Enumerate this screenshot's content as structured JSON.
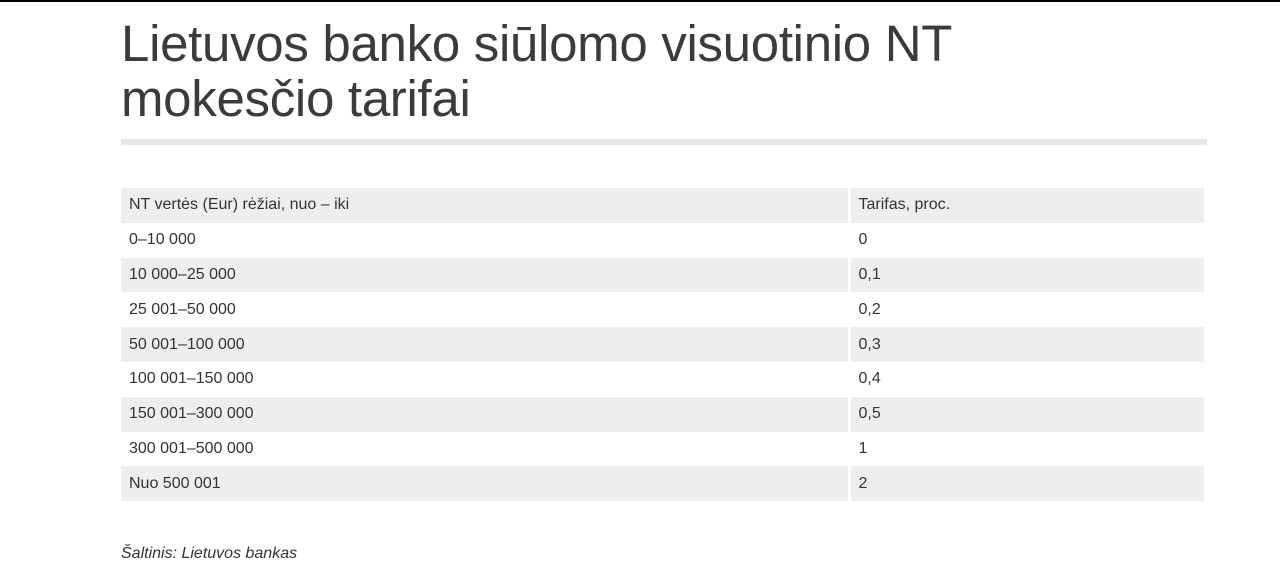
{
  "title": "Lietuvos banko siūlomo visuotinio NT mokesčio tarifai",
  "table": {
    "headers": [
      "NT vertės (Eur) rėžiai, nuo – iki",
      "Tarifas, proc."
    ],
    "rows": [
      [
        "0–10 000",
        "0"
      ],
      [
        "10 000–25 000",
        "0,1"
      ],
      [
        "25 001–50 000",
        "0,2"
      ],
      [
        "50 001–100 000",
        "0,3"
      ],
      [
        "100 001–150 000",
        "0,4"
      ],
      [
        "150 001–300 000",
        "0,5"
      ],
      [
        "300 001–500 000",
        "1"
      ],
      [
        "Nuo 500 001",
        "2"
      ]
    ]
  },
  "source": "Šaltinis: Lietuvos bankas",
  "colors": {
    "row_shade": "#eeeeee",
    "rule": "#e6e6e6",
    "text": "#333333"
  }
}
